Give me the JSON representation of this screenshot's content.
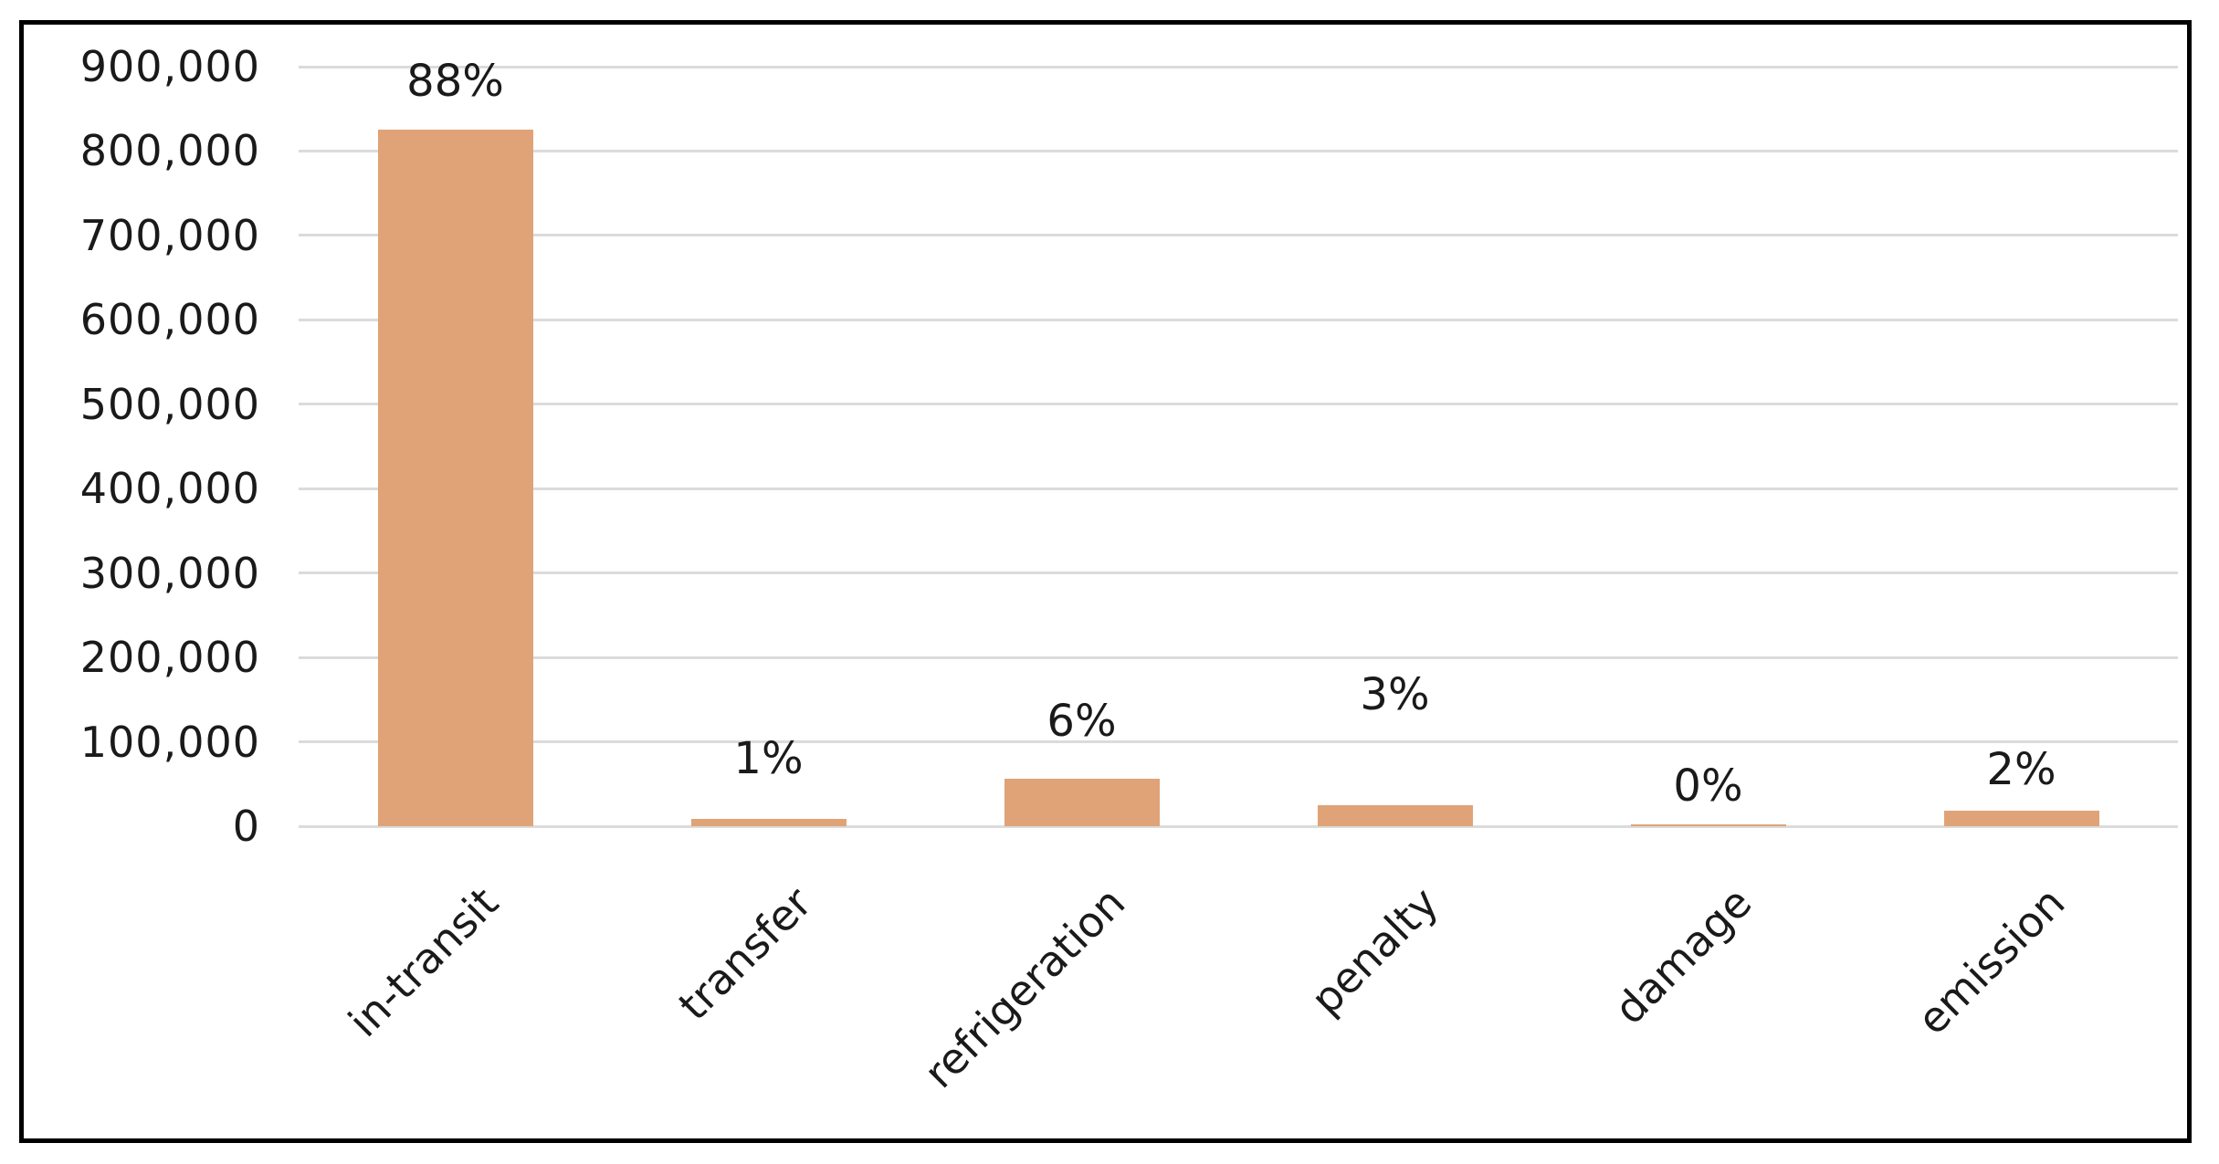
{
  "chart_data": {
    "type": "bar",
    "title": "",
    "xlabel": "",
    "ylabel": "",
    "categories": [
      "in-transit",
      "transfer",
      "refrigeration",
      "penalty",
      "damage",
      "emission"
    ],
    "values": [
      825000,
      9000,
      56000,
      25000,
      2000,
      18000
    ],
    "bar_percent_labels": [
      "88%",
      "1%",
      "6%",
      "3%",
      "0%",
      "2%"
    ],
    "ylim": [
      0,
      900000
    ],
    "ytick_interval": 100000,
    "ytick_labels": [
      "900,000",
      "800,000",
      "700,000",
      "600,000",
      "500,000",
      "400,000",
      "300,000",
      "200,000",
      "100,000",
      "0"
    ],
    "grid": true,
    "legend": false,
    "bar_color": "#DFA377",
    "gridline_color": "#DBDBDB",
    "axis_text_color": "#1A1A1A",
    "frame_border_color": "#000000",
    "background_color": "#FFFFFF"
  }
}
